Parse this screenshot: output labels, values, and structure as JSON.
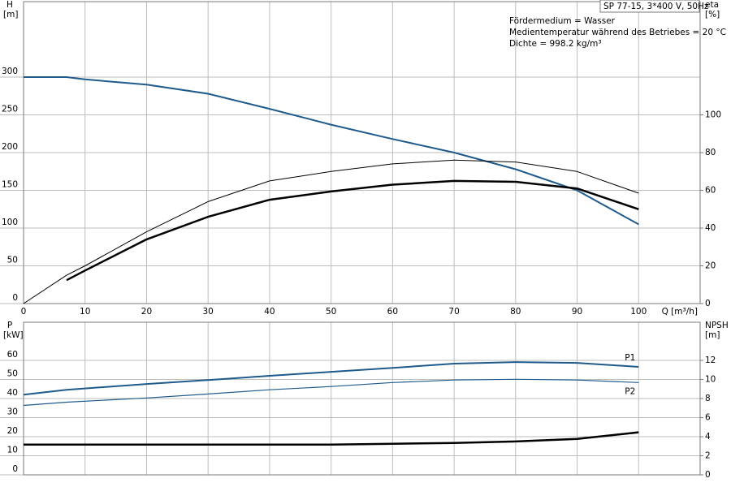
{
  "chart_data": [
    {
      "type": "line",
      "title": "SP 77-15, 3*400 V, 50Hz",
      "annotations": [
        "Fördermedium = Wasser",
        "Medientemperatur während des Betriebes = 20 °C",
        "Dichte = 998.2 kg/m³"
      ],
      "xlabel": "Q [m³/h]",
      "ylabel": [
        "H",
        "[m]"
      ],
      "y2label": [
        "eta",
        "[%]"
      ],
      "x": [
        0,
        7,
        10,
        20,
        30,
        40,
        50,
        60,
        70,
        80,
        90,
        100
      ],
      "series": [
        {
          "color": "#1f5a8c",
          "linewidth": 2,
          "values": [
            300,
            300,
            297,
            290,
            278,
            258,
            237,
            218,
            200,
            178,
            150,
            105
          ]
        },
        {
          "color": "#000000",
          "linewidth": 1,
          "axis": "y2",
          "values": [
            0,
            15,
            20,
            38,
            54,
            65,
            70,
            74,
            76,
            75,
            70,
            58.5
          ]
        },
        {
          "color": "#000000",
          "linewidth": 2.5,
          "axis": "y2",
          "values": [
            null,
            12.4,
            17.5,
            34,
            46,
            55,
            59.4,
            63,
            65,
            64.5,
            61,
            50
          ]
        }
      ],
      "xlim": [
        0,
        110
      ],
      "xticks": [
        0,
        10,
        20,
        30,
        40,
        50,
        60,
        70,
        80,
        90,
        100
      ],
      "ylim": [
        0,
        400
      ],
      "yticks": [
        0,
        50,
        100,
        150,
        200,
        250,
        300
      ],
      "y2lim": [
        0,
        160
      ],
      "y2ticks": [
        0,
        20,
        40,
        60,
        80,
        100
      ],
      "grid": true,
      "xtick_labels": true
    },
    {
      "type": "line",
      "ylabel": [
        "P",
        "[kW]"
      ],
      "y2label": [
        "NPSH",
        "[m]"
      ],
      "x": [
        0,
        7,
        20,
        30,
        40,
        50,
        60,
        70,
        80,
        90,
        100
      ],
      "series": [
        {
          "name": "P1",
          "color": "#1f5a8c",
          "linewidth": 2,
          "values": [
            42,
            44.6,
            47.6,
            49.7,
            51.9,
            54,
            56.1,
            58.3,
            59.1,
            58.7,
            56.6
          ]
        },
        {
          "name": "P2",
          "color": "#1f5a8c",
          "linewidth": 1.2,
          "values": [
            36.4,
            38.1,
            40.3,
            42.4,
            44.6,
            46.3,
            48.4,
            49.7,
            50.1,
            49.7,
            48.4
          ]
        },
        {
          "color": "#000000",
          "linewidth": 2.5,
          "axis": "y2",
          "values": [
            3.17,
            3.17,
            3.17,
            3.17,
            3.17,
            3.17,
            3.26,
            3.34,
            3.5,
            3.77,
            4.46
          ]
        }
      ],
      "xlim": [
        0,
        110
      ],
      "xticks": [
        0,
        10,
        20,
        30,
        40,
        50,
        60,
        70,
        80,
        90,
        100
      ],
      "ylim": [
        0,
        80
      ],
      "yticks": [
        0,
        10,
        20,
        30,
        40,
        50,
        60
      ],
      "y2lim": [
        0,
        16
      ],
      "y2ticks": [
        0,
        2,
        4,
        6,
        8,
        10,
        12
      ],
      "grid": true,
      "xtick_labels": false
    }
  ]
}
